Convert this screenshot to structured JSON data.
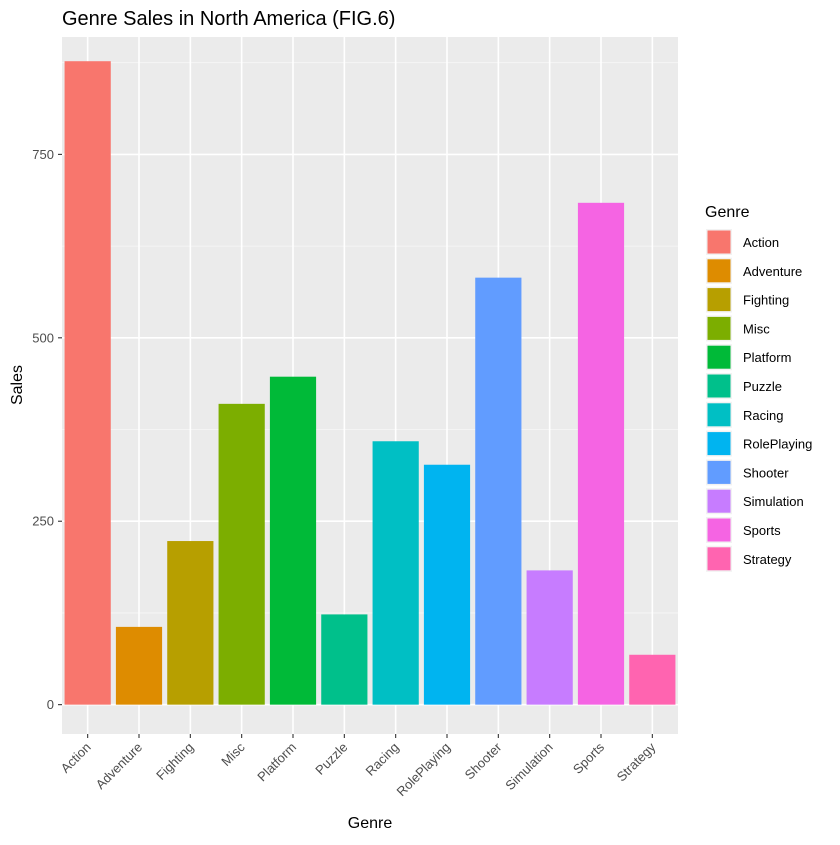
{
  "chart_data": {
    "type": "bar",
    "title": "Genre Sales in North America (FIG.6)",
    "xlabel": "Genre",
    "ylabel": "Sales",
    "ylim": [
      -40,
      910
    ],
    "yticks": [
      0,
      250,
      500,
      750
    ],
    "grid": true,
    "legend": {
      "title": "Genre",
      "position": "right"
    },
    "categories": [
      "Action",
      "Adventure",
      "Fighting",
      "Misc",
      "Platform",
      "Puzzle",
      "Racing",
      "RolePlaying",
      "Shooter",
      "Simulation",
      "Sports",
      "Strategy"
    ],
    "values": [
      877,
      106,
      223,
      410,
      447,
      123,
      359,
      327,
      582,
      183,
      684,
      68
    ],
    "colors": [
      "#F8766D",
      "#DE8C00",
      "#B79F00",
      "#7CAE00",
      "#00BA38",
      "#00C08B",
      "#00BFC4",
      "#00B4F0",
      "#619CFF",
      "#C77CFF",
      "#F564E3",
      "#FF64B0"
    ]
  }
}
